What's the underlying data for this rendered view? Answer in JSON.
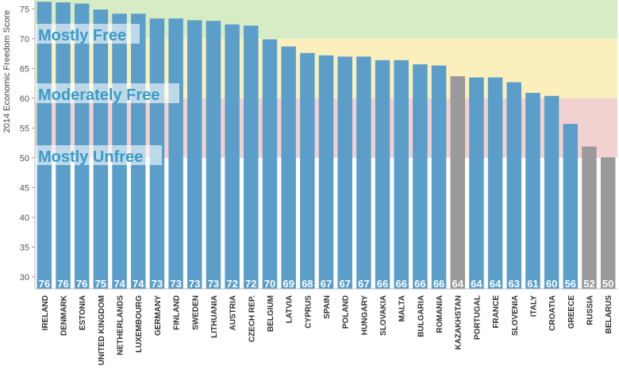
{
  "chart_data": {
    "type": "bar",
    "title": "",
    "xlabel": "",
    "ylabel": "2014 Economic Freedom Score",
    "ylim": [
      28,
      76.5
    ],
    "yticks": [
      30,
      35,
      40,
      45,
      50,
      55,
      60,
      65,
      70,
      75
    ],
    "categories": [
      "IRELAND",
      "DENMARK",
      "ESTONIA",
      "UNITED KINGDOM",
      "NETHERLANDS",
      "LUXEMBOURG",
      "GERMANY",
      "FINLAND",
      "SWEDEN",
      "LITHUANIA",
      "AUSTRIA",
      "CZECH REP.",
      "BELGIUM",
      "LATVIA",
      "CYPRUS",
      "SPAIN",
      "POLAND",
      "HUNGARY",
      "SLOVAKIA",
      "MALTA",
      "BULGARIA",
      "ROMANIA",
      "KAZAKHSTAN",
      "PORTUGAL",
      "FRANCE",
      "SLOVENIA",
      "ITALY",
      "CROATIA",
      "GREECE",
      "RUSSIA",
      "BELARUS"
    ],
    "values": [
      76.2,
      76.1,
      75.9,
      74.9,
      74.2,
      74.2,
      73.4,
      73.4,
      73.1,
      73.0,
      72.4,
      72.2,
      69.9,
      68.7,
      67.6,
      67.2,
      67.0,
      67.0,
      66.4,
      66.4,
      65.7,
      65.5,
      63.7,
      63.5,
      63.5,
      62.7,
      60.9,
      60.4,
      55.7,
      51.9,
      50.1
    ],
    "labels": [
      "76",
      "76",
      "76",
      "75",
      "74",
      "74",
      "73",
      "73",
      "73",
      "73",
      "72",
      "72",
      "70",
      "69",
      "68",
      "67",
      "67",
      "67",
      "66",
      "66",
      "66",
      "66",
      "64",
      "64",
      "64",
      "63",
      "61",
      "60",
      "56",
      "52",
      "50"
    ],
    "colors": [
      "#5b9ec9",
      "#5b9ec9",
      "#5b9ec9",
      "#5b9ec9",
      "#5b9ec9",
      "#5b9ec9",
      "#5b9ec9",
      "#5b9ec9",
      "#5b9ec9",
      "#5b9ec9",
      "#5b9ec9",
      "#5b9ec9",
      "#5b9ec9",
      "#5b9ec9",
      "#5b9ec9",
      "#5b9ec9",
      "#5b9ec9",
      "#5b9ec9",
      "#5b9ec9",
      "#5b9ec9",
      "#5b9ec9",
      "#5b9ec9",
      "#9a9a9a",
      "#5b9ec9",
      "#5b9ec9",
      "#5b9ec9",
      "#5b9ec9",
      "#5b9ec9",
      "#5b9ec9",
      "#9a9a9a",
      "#9a9a9a"
    ],
    "bands": [
      {
        "label": "Mostly Free",
        "from": 70,
        "to": 80,
        "color": "#d7ecc4"
      },
      {
        "label": "Moderately Free",
        "from": 60,
        "to": 70,
        "color": "#fbf0bd"
      },
      {
        "label": "Mostly Unfree",
        "from": 50,
        "to": 60,
        "color": "#f2d2d0"
      }
    ],
    "grid": false
  }
}
